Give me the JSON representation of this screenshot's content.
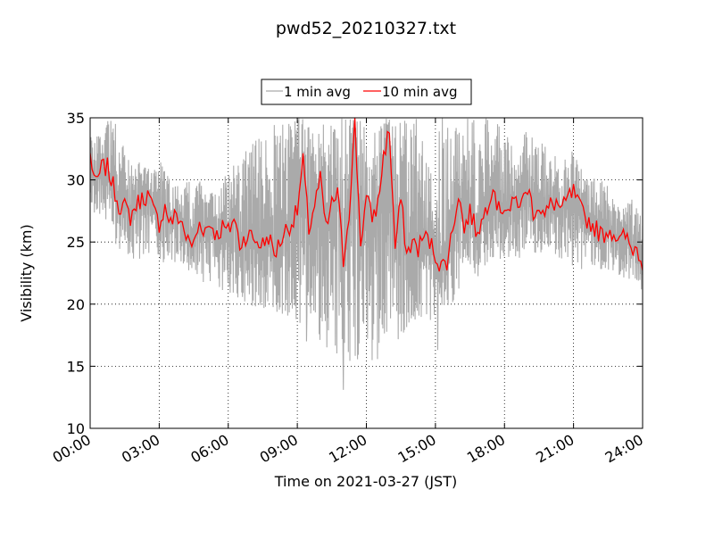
{
  "chart_data": {
    "type": "line",
    "title": "pwd52_20210327.txt",
    "xlabel": "Time on 2021-03-27 (JST)",
    "ylabel": "Visibility (km)",
    "x_tick_labels": [
      "00:00",
      "03:00",
      "06:00",
      "09:00",
      "12:00",
      "15:00",
      "18:00",
      "21:00",
      "24:00"
    ],
    "xlim_hours": [
      0,
      24
    ],
    "ylim": [
      10,
      35
    ],
    "y_ticks": [
      10,
      15,
      20,
      25,
      30,
      35
    ],
    "grid": true,
    "legend_position": "top-center",
    "series": [
      {
        "name": "1 min avg",
        "color": "#aaaaaa",
        "x_hours": [
          0,
          0.25,
          0.5,
          0.75,
          1,
          1.25,
          1.5,
          1.75,
          2,
          2.25,
          2.5,
          2.75,
          3,
          3.25,
          3.5,
          3.75,
          4,
          4.25,
          4.5,
          4.75,
          5,
          5.25,
          5.5,
          5.75,
          6,
          6.25,
          6.5,
          6.75,
          7,
          7.25,
          7.5,
          7.75,
          8,
          8.25,
          8.5,
          8.75,
          9,
          9.25,
          9.5,
          9.75,
          10,
          10.25,
          10.5,
          10.75,
          11,
          11.25,
          11.5,
          11.75,
          12,
          12.25,
          12.5,
          12.75,
          13,
          13.25,
          13.5,
          13.75,
          14,
          14.25,
          14.5,
          14.75,
          15,
          15.25,
          15.5,
          15.75,
          16,
          16.25,
          16.5,
          16.75,
          17,
          17.25,
          17.5,
          17.75,
          18,
          18.25,
          18.5,
          18.75,
          19,
          19.25,
          19.5,
          19.75,
          20,
          20.25,
          20.5,
          20.75,
          21,
          21.25,
          21.5,
          21.75,
          22,
          22.25,
          22.5,
          22.75,
          23,
          23.25,
          23.5,
          23.75,
          24
        ],
        "min_values": [
          27,
          27.5,
          27,
          26,
          25,
          24.5,
          24,
          24,
          22.5,
          24,
          24,
          23.5,
          23,
          23,
          22.5,
          23,
          22.5,
          22,
          22,
          22,
          21.5,
          21.5,
          21,
          21,
          21,
          20.5,
          20,
          20,
          19.5,
          19.5,
          19.5,
          19.5,
          19,
          19,
          18.5,
          18.5,
          18,
          18,
          17.5,
          17,
          16.5,
          16.5,
          16,
          15.5,
          15,
          14.5,
          14.5,
          16,
          16.5,
          16,
          15.5,
          16.5,
          17,
          17,
          17,
          18,
          18.5,
          18.5,
          18.5,
          18.5,
          19,
          19.5,
          19.5,
          20,
          21,
          21.5,
          22,
          22,
          22.5,
          22.5,
          22.5,
          23,
          23,
          23,
          23.5,
          23.5,
          24,
          24,
          24,
          24,
          24,
          23.5,
          23.5,
          23.5,
          23,
          22.5,
          22.5,
          22.5,
          22.5,
          22.5,
          22.5,
          22.5,
          22,
          22,
          22,
          21.5,
          21
        ],
        "max_values": [
          33.5,
          34,
          34,
          35,
          35,
          35,
          33,
          32,
          31,
          32,
          31.5,
          31,
          32,
          31,
          30.5,
          30,
          29.5,
          30,
          30,
          30,
          29,
          29,
          29,
          30,
          31,
          32,
          31,
          33,
          33,
          33.5,
          33,
          34,
          35,
          35,
          35,
          35,
          35,
          35,
          35,
          35,
          35,
          35,
          35,
          35,
          35,
          35,
          35,
          35,
          35,
          35,
          35,
          35,
          35,
          35,
          35,
          35,
          35,
          35,
          35,
          35,
          35,
          35,
          35,
          35,
          35,
          35,
          35,
          35,
          35,
          35,
          34,
          35,
          34,
          34,
          33,
          33.5,
          34,
          33.5,
          33,
          33,
          32,
          32,
          32.5,
          32,
          32.5,
          31.5,
          31,
          30.5,
          30,
          30,
          29.5,
          29,
          29,
          28.5,
          28.5,
          28,
          28
        ],
        "min_outliers": [
          {
            "x_hours": 11.0,
            "value": 13.1
          },
          {
            "x_hours": 12.25,
            "value": 15.5
          },
          {
            "x_hours": 15.1,
            "value": 16.3
          },
          {
            "x_hours": 9.4,
            "value": 17.0
          }
        ]
      },
      {
        "name": "10 min avg",
        "color": "#ff0000",
        "x_hours": [
          0,
          0.25,
          0.5,
          0.75,
          1,
          1.25,
          1.5,
          1.75,
          2,
          2.25,
          2.5,
          2.75,
          3,
          3.25,
          3.5,
          3.75,
          4,
          4.25,
          4.5,
          4.75,
          5,
          5.25,
          5.5,
          5.75,
          6,
          6.25,
          6.5,
          6.75,
          7,
          7.25,
          7.5,
          7.75,
          8,
          8.25,
          8.5,
          8.75,
          9,
          9.25,
          9.5,
          9.75,
          10,
          10.25,
          10.5,
          10.75,
          11,
          11.25,
          11.5,
          11.75,
          12,
          12.25,
          12.5,
          12.75,
          13,
          13.25,
          13.5,
          13.75,
          14,
          14.25,
          14.5,
          14.75,
          15,
          15.25,
          15.5,
          15.75,
          16,
          16.25,
          16.5,
          16.75,
          17,
          17.25,
          17.5,
          17.75,
          18,
          18.25,
          18.5,
          18.75,
          19,
          19.25,
          19.5,
          19.75,
          20,
          20.25,
          20.5,
          20.75,
          21,
          21.25,
          21.5,
          21.75,
          22,
          22.25,
          22.5,
          22.75,
          23,
          23.25,
          23.5,
          23.75,
          24
        ],
        "values": [
          32,
          29.5,
          31,
          31,
          29.5,
          28,
          27.8,
          27,
          28,
          28.5,
          28.8,
          27.5,
          26.5,
          27.8,
          26.5,
          27.2,
          26.5,
          25,
          24.8,
          26.5,
          26,
          26.5,
          25.5,
          26.2,
          25.8,
          27,
          24.8,
          25.5,
          25.5,
          25,
          24.8,
          25.5,
          24,
          25,
          26,
          26.5,
          27.5,
          31.5,
          26,
          28,
          30,
          26,
          28,
          29,
          23.5,
          27.5,
          34.5,
          25,
          28.5,
          27,
          28,
          32,
          34,
          24.5,
          28.5,
          24,
          25,
          24.5,
          25.5,
          25,
          24,
          23,
          23.5,
          26,
          29,
          26,
          27.5,
          26,
          26.5,
          28,
          29.8,
          27.5,
          28,
          27.5,
          28.5,
          28,
          29.5,
          27.5,
          28,
          27,
          28,
          28.2,
          27.5,
          28.5,
          29,
          27.8,
          27,
          26.5,
          26,
          25.5,
          26,
          25.8,
          25,
          25.5,
          24.5,
          24.5,
          23.5
        ]
      }
    ]
  }
}
